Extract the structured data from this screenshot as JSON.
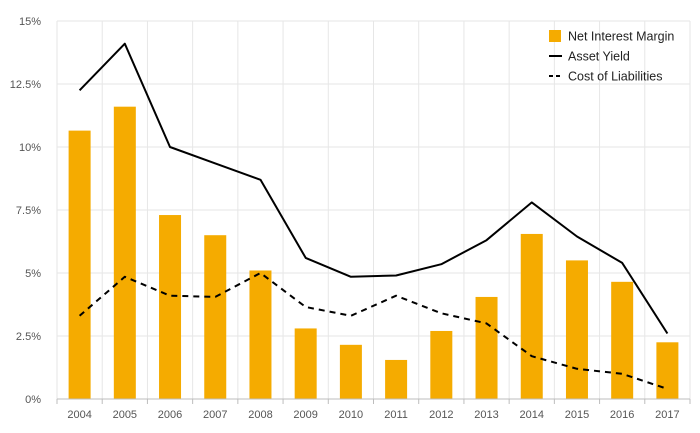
{
  "chart_data": {
    "type": "bar",
    "categories": [
      "2004",
      "2005",
      "2006",
      "2007",
      "2008",
      "2009",
      "2010",
      "2011",
      "2012",
      "2013",
      "2014",
      "2015",
      "2016",
      "2017"
    ],
    "series": [
      {
        "name": "Net Interest Margin",
        "kind": "bar",
        "color": "#f5ab00",
        "values": [
          10.65,
          11.6,
          7.3,
          6.5,
          5.1,
          2.8,
          2.15,
          1.55,
          2.7,
          4.05,
          6.55,
          5.5,
          4.65,
          2.25
        ]
      },
      {
        "name": "Asset Yield",
        "kind": "line",
        "style": "solid",
        "color": "#000000",
        "values": [
          12.25,
          14.1,
          10.0,
          9.35,
          8.7,
          5.6,
          4.85,
          4.9,
          5.35,
          6.3,
          7.8,
          6.45,
          5.4,
          2.6
        ]
      },
      {
        "name": "Cost of Liabilities",
        "kind": "line",
        "style": "dashed",
        "color": "#000000",
        "values": [
          3.3,
          4.85,
          4.1,
          4.05,
          5.0,
          3.65,
          3.3,
          4.1,
          3.4,
          3.0,
          1.7,
          1.2,
          1.0,
          0.4
        ]
      }
    ],
    "yticks": [
      "0%",
      "2.5%",
      "5%",
      "7.5%",
      "10%",
      "12.5%",
      "15%"
    ],
    "ytick_values": [
      0,
      2.5,
      5,
      7.5,
      10,
      12.5,
      15
    ],
    "ylim": [
      0,
      15
    ],
    "grid": true,
    "legend": "top-right"
  }
}
